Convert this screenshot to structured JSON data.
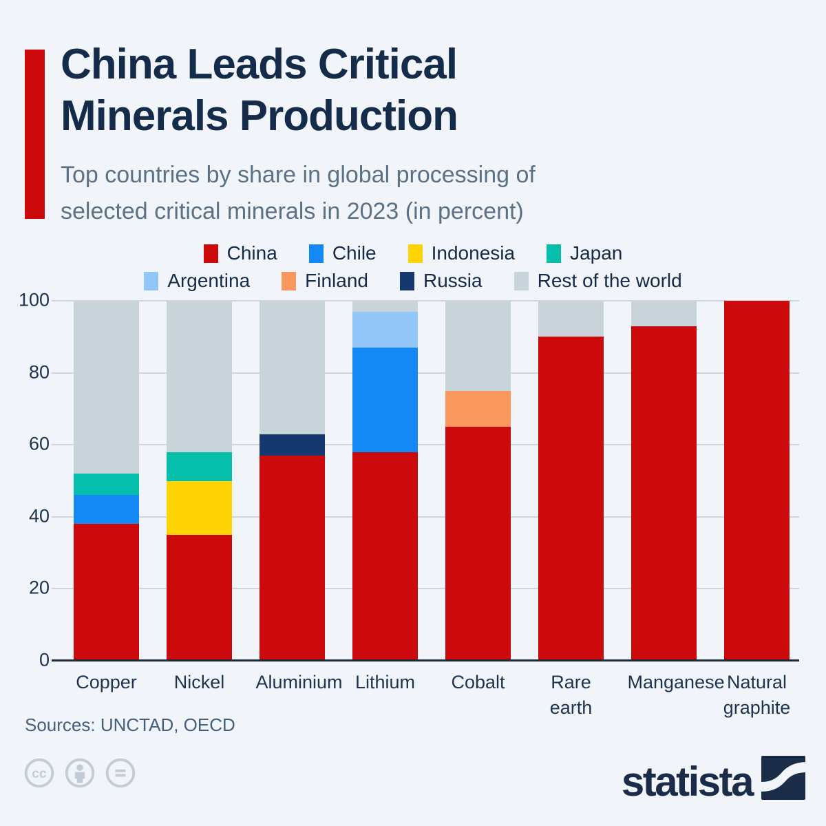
{
  "header": {
    "title": "China Leads Critical\nMinerals Production",
    "subtitle": "Top countries by share in global processing of\nselected critical minerals in 2023 (in percent)",
    "accent_color": "#CC0A0C"
  },
  "legend": {
    "rows": [
      [
        0,
        1,
        2,
        3
      ],
      [
        4,
        5,
        6,
        7
      ]
    ]
  },
  "chart_data": {
    "type": "bar",
    "subtype": "stacked-vertical",
    "title": "China Leads Critical Minerals Production",
    "unit": "percent",
    "xlabel": "",
    "ylabel": "",
    "ylim": [
      0,
      100
    ],
    "yticks": [
      0,
      20,
      40,
      60,
      80,
      100
    ],
    "grid": true,
    "legend_position": "top",
    "categories": [
      "Copper",
      "Nickel",
      "Aluminium",
      "Lithium",
      "Cobalt",
      "Rare earth",
      "Manganese",
      "Natural graphite"
    ],
    "series": [
      {
        "name": "China",
        "color": "#CC0A0C",
        "values": [
          38,
          35,
          57,
          58,
          65,
          90,
          93,
          100
        ]
      },
      {
        "name": "Chile",
        "color": "#1489F5",
        "values": [
          8,
          0,
          0,
          29,
          0,
          0,
          0,
          0
        ]
      },
      {
        "name": "Indonesia",
        "color": "#FFD402",
        "values": [
          0,
          15,
          0,
          0,
          0,
          0,
          0,
          0
        ]
      },
      {
        "name": "Japan",
        "color": "#06BEAC",
        "values": [
          6,
          8,
          0,
          0,
          0,
          0,
          0,
          0
        ]
      },
      {
        "name": "Argentina",
        "color": "#92C6F8",
        "values": [
          0,
          0,
          0,
          10,
          0,
          0,
          0,
          0
        ]
      },
      {
        "name": "Finland",
        "color": "#F9975F",
        "values": [
          0,
          0,
          0,
          0,
          10,
          0,
          0,
          0
        ]
      },
      {
        "name": "Russia",
        "color": "#15396F",
        "values": [
          0,
          0,
          6,
          0,
          0,
          0,
          0,
          0
        ]
      },
      {
        "name": "Rest of the world",
        "color": "#C9D4DA",
        "values": [
          48,
          42,
          37,
          3,
          25,
          10,
          7,
          0
        ]
      }
    ]
  },
  "footer": {
    "sources": "Sources: UNCTAD, OECD",
    "license_icons": [
      "cc-icon",
      "by-person-icon",
      "nd-equals-icon"
    ],
    "brand": "statista"
  },
  "colors": {
    "background": "#F1F5F9",
    "title_text": "#152B4A",
    "subtitle_text": "#5A7186",
    "axis_text": "#1C3452",
    "gridline": "#CDD6DD",
    "axis_line": "#1C2B3A",
    "license_icon_gray": "#C2CCD6",
    "brand_navy": "#1B2C49"
  }
}
